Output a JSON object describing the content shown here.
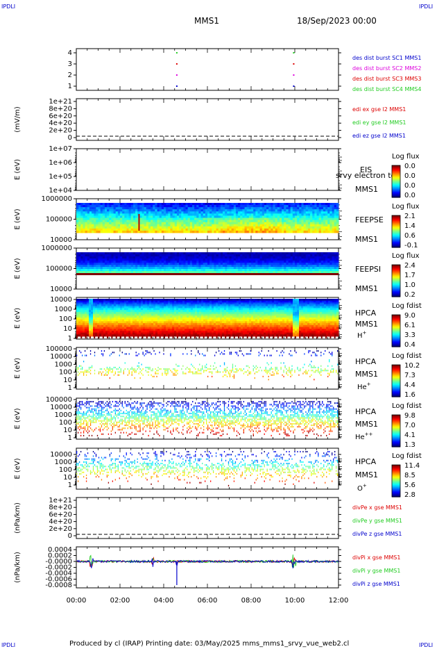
{
  "header": {
    "left_logo": "IPDLI",
    "right_logo": "IPDLI",
    "title": "MMS1",
    "date": "18/Sep/2023 00:00"
  },
  "footer": {
    "left_logo": "IPDLI",
    "right_logo": "IPDLI",
    "text": "Produced by cl (IRAP)   Printing date: 03/May/2025   mms_mms1_srvy_vue_web2.cl"
  },
  "colors": {
    "mms1": "#0000cc",
    "mms2": "#dd00dd",
    "mms3": "#dd0000",
    "mms4": "#22cc22",
    "ex": "#dd0000",
    "ey": "#22cc22",
    "ez": "#0000cc",
    "axis": "#000000"
  },
  "chart_data": [
    {
      "type": "scatter",
      "name": "burst",
      "x_range": [
        "00:00",
        "12:00"
      ],
      "ylim": [
        0.5,
        4.5
      ],
      "yticks": [
        "4",
        "3",
        "2",
        "1"
      ],
      "series": [
        {
          "name": "des dist burst SC1 MMS1",
          "y": 1,
          "x_hours": [
            4.6,
            9.95
          ]
        },
        {
          "name": "des dist burst SC2 MMS2",
          "y": 2,
          "x_hours": [
            4.6,
            9.95
          ]
        },
        {
          "name": "des dist burst SC3 MMS3",
          "y": 3,
          "x_hours": [
            4.6,
            9.95
          ]
        },
        {
          "name": "des dist burst SC4 MMS4",
          "y": 4,
          "x_hours": [
            4.6,
            9.95
          ]
        }
      ]
    },
    {
      "type": "line",
      "name": "edi",
      "ylabel": "(mV/m)",
      "yticks": [
        "1e+21",
        "8e+20",
        "6e+20",
        "4e+20",
        "2e+20",
        "0"
      ],
      "series": [
        {
          "name": "edi ex gse l2 MMS1"
        },
        {
          "name": "edi ey gse l2 MMS1"
        },
        {
          "name": "edi ez gse l2 MMS1"
        }
      ]
    },
    {
      "type": "heatmap",
      "name": "eis",
      "ylabel": "E (eV)",
      "yticks": [
        "1e+07",
        "1e+06",
        "1e+05",
        "1e+04"
      ],
      "right_labels": [
        "EIS",
        "MMS1"
      ],
      "overlap_text": "srvy electron to",
      "colorbar_title": "Log flux",
      "colorbar_ticks": [
        "0.0",
        "0.0",
        "0.0",
        "0.0"
      ]
    },
    {
      "type": "heatmap",
      "name": "feepse",
      "ylabel": "E (eV)",
      "yticks": [
        "1000000",
        "100000",
        "10000"
      ],
      "right_labels": [
        "FEEPSE",
        "MMS1"
      ],
      "colorbar_title": "Log flux",
      "colorbar_ticks": [
        "2.1",
        "1.4",
        "0.6",
        "-0.1"
      ]
    },
    {
      "type": "heatmap",
      "name": "feepsi",
      "ylabel": "E (eV)",
      "yticks": [
        "1000000",
        "100000",
        "10000"
      ],
      "right_labels": [
        "FEEPSI",
        "MMS1"
      ],
      "colorbar_title": "Log flux",
      "colorbar_ticks": [
        "2.4",
        "1.7",
        "1.0",
        "0.2"
      ]
    },
    {
      "type": "heatmap",
      "name": "hpca_h",
      "ylabel": "E (eV)",
      "yticks": [
        "10000",
        "1000",
        "100",
        "10",
        "1"
      ],
      "right_labels": [
        "HPCA",
        "MMS1",
        "H+"
      ],
      "colorbar_title": "Log fdist",
      "colorbar_ticks": [
        "9.0",
        "6.1",
        "3.3",
        "0.4"
      ]
    },
    {
      "type": "heatmap",
      "name": "hpca_he",
      "ylabel": "E (eV)",
      "yticks": [
        "100000",
        "10000",
        "1000",
        "100",
        "10",
        "1"
      ],
      "right_labels": [
        "HPCA",
        "MMS1",
        "He+"
      ],
      "colorbar_title": "Log fdist",
      "colorbar_ticks": [
        "10.2",
        "7.3",
        "4.4",
        "1.6"
      ]
    },
    {
      "type": "heatmap",
      "name": "hpca_hepp",
      "ylabel": "E (eV)",
      "yticks": [
        "100000",
        "10000",
        "1000",
        "100",
        "10",
        "1"
      ],
      "right_labels": [
        "HPCA",
        "MMS1",
        "He++"
      ],
      "colorbar_title": "Log fdist",
      "colorbar_ticks": [
        "9.8",
        "7.0",
        "4.1",
        "1.3"
      ]
    },
    {
      "type": "heatmap",
      "name": "hpca_o",
      "ylabel": "E (eV)",
      "yticks": [
        "10000",
        "1000",
        "100",
        "10",
        "1"
      ],
      "right_labels": [
        "HPCA",
        "MMS1",
        "O+"
      ],
      "colorbar_title": "Log fdist",
      "colorbar_ticks": [
        "11.4",
        "8.5",
        "5.6",
        "2.8"
      ]
    },
    {
      "type": "line",
      "name": "divpe",
      "ylabel": "(nPa/km)",
      "yticks": [
        "1e+21",
        "8e+20",
        "6e+20",
        "4e+20",
        "2e+20",
        "0"
      ],
      "series": [
        {
          "name": "divPe x gse MMS1"
        },
        {
          "name": "divPe y gse MMS1"
        },
        {
          "name": "divPe z gse MMS1"
        }
      ]
    },
    {
      "type": "line",
      "name": "divpi",
      "ylabel": "(nPa/km)",
      "yticks": [
        "0.0004",
        "0.0002",
        "-0.0000",
        "-0.0002",
        "-0.0004",
        "-0.0006",
        "-0.0008"
      ],
      "series": [
        {
          "name": "divPi x gse MMS1"
        },
        {
          "name": "divPi y gse MMS1"
        },
        {
          "name": "divPi z gse MMS1"
        }
      ]
    }
  ],
  "xaxis": {
    "ticks": [
      "00:00",
      "02:00",
      "04:00",
      "06:00",
      "08:00",
      "10:00",
      "12:00"
    ]
  }
}
